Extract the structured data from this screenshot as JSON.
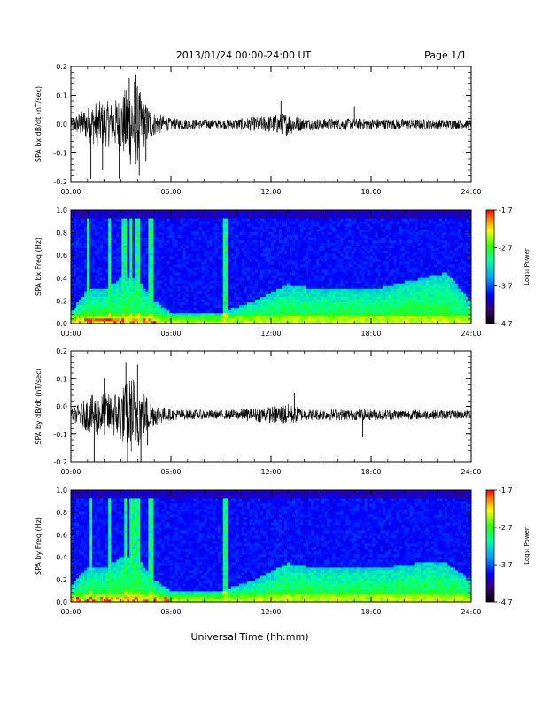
{
  "header": {
    "title": "2013/01/24  00:00-24:00 UT",
    "page": "Page 1/1"
  },
  "xlabel": "Universal Time (hh:mm)",
  "chart_data": [
    {
      "type": "line",
      "ylabel": "SPA bx dB/dt (nT/sec)",
      "x_ticks": [
        "00:00",
        "06:00",
        "12:00",
        "18:00",
        "24:00"
      ],
      "xlim": [
        0,
        24
      ],
      "ylim": [
        -0.2,
        0.2
      ],
      "y_ticks": [
        "0.2",
        "0.1",
        "0.0",
        "-0.1",
        "-0.2"
      ],
      "baseline": 0.0,
      "envelope": [
        {
          "t": 0.0,
          "a": 0.02
        },
        {
          "t": 1.0,
          "a": 0.06
        },
        {
          "t": 1.5,
          "a": 0.08
        },
        {
          "t": 2.5,
          "a": 0.08
        },
        {
          "t": 3.0,
          "a": 0.1
        },
        {
          "t": 3.8,
          "a": 0.17
        },
        {
          "t": 4.3,
          "a": 0.09
        },
        {
          "t": 5.0,
          "a": 0.04
        },
        {
          "t": 6.0,
          "a": 0.02
        },
        {
          "t": 9.0,
          "a": 0.015
        },
        {
          "t": 10.0,
          "a": 0.02
        },
        {
          "t": 12.0,
          "a": 0.03
        },
        {
          "t": 13.0,
          "a": 0.04
        },
        {
          "t": 14.0,
          "a": 0.02
        },
        {
          "t": 18.0,
          "a": 0.02
        },
        {
          "t": 24.0,
          "a": 0.015
        }
      ],
      "spikes": [
        {
          "t": 1.2,
          "v": -0.19
        },
        {
          "t": 1.9,
          "v": -0.16
        },
        {
          "t": 2.9,
          "v": -0.19
        },
        {
          "t": 3.5,
          "v": 0.16
        },
        {
          "t": 3.9,
          "v": 0.17
        },
        {
          "t": 4.1,
          "v": -0.18
        },
        {
          "t": 4.5,
          "v": -0.13
        },
        {
          "t": 12.6,
          "v": 0.08
        },
        {
          "t": 17.0,
          "v": 0.06
        }
      ]
    },
    {
      "type": "heatmap",
      "ylabel": "SPA bx Freq (Hz)",
      "x_ticks": [
        "00:00",
        "06:00",
        "12:00",
        "18:00",
        "24:00"
      ],
      "xlim": [
        0,
        24
      ],
      "ylim": [
        0.0,
        1.0
      ],
      "y_ticks": [
        "1.0",
        "0.8",
        "0.6",
        "0.4",
        "0.2",
        "0.0"
      ],
      "colorbar": {
        "label": "Log₁₀ Power",
        "ticks": [
          "-1.7",
          "-2.7",
          "-3.7",
          "-4.7"
        ],
        "range": [
          -4.7,
          -1.7
        ]
      },
      "activity": [
        {
          "t": 0.0,
          "fmax": 0.1
        },
        {
          "t": 1.0,
          "fmax": 0.3
        },
        {
          "t": 2.0,
          "fmax": 0.3
        },
        {
          "t": 3.0,
          "fmax": 0.4
        },
        {
          "t": 4.0,
          "fmax": 0.4
        },
        {
          "t": 5.0,
          "fmax": 0.2
        },
        {
          "t": 6.0,
          "fmax": 0.1
        },
        {
          "t": 9.0,
          "fmax": 0.1
        },
        {
          "t": 11.0,
          "fmax": 0.2
        },
        {
          "t": 13.0,
          "fmax": 0.35
        },
        {
          "t": 15.0,
          "fmax": 0.3
        },
        {
          "t": 18.0,
          "fmax": 0.3
        },
        {
          "t": 21.0,
          "fmax": 0.4
        },
        {
          "t": 22.5,
          "fmax": 0.45
        },
        {
          "t": 24.0,
          "fmax": 0.2
        }
      ],
      "bursts": [
        1.0,
        2.3,
        3.2,
        3.6,
        4.0,
        4.8,
        9.3
      ]
    },
    {
      "type": "line",
      "ylabel": "SPA by dB/dt (nT/sec)",
      "x_ticks": [
        "00:00",
        "06:00",
        "12:00",
        "18:00",
        "24:00"
      ],
      "xlim": [
        0,
        24
      ],
      "ylim": [
        -0.2,
        0.2
      ],
      "y_ticks": [
        "0.2",
        "0.1",
        "0.0",
        "-0.1",
        "-0.2"
      ],
      "baseline": -0.03,
      "envelope": [
        {
          "t": 0.0,
          "a": 0.02
        },
        {
          "t": 1.0,
          "a": 0.06
        },
        {
          "t": 1.5,
          "a": 0.08
        },
        {
          "t": 2.5,
          "a": 0.08
        },
        {
          "t": 3.0,
          "a": 0.1
        },
        {
          "t": 3.8,
          "a": 0.15
        },
        {
          "t": 4.3,
          "a": 0.09
        },
        {
          "t": 5.0,
          "a": 0.04
        },
        {
          "t": 6.0,
          "a": 0.02
        },
        {
          "t": 9.0,
          "a": 0.015
        },
        {
          "t": 10.0,
          "a": 0.02
        },
        {
          "t": 12.0,
          "a": 0.03
        },
        {
          "t": 13.0,
          "a": 0.04
        },
        {
          "t": 14.0,
          "a": 0.02
        },
        {
          "t": 18.0,
          "a": 0.02
        },
        {
          "t": 24.0,
          "a": 0.015
        }
      ],
      "spikes": [
        {
          "t": 1.4,
          "v": -0.2
        },
        {
          "t": 2.0,
          "v": 0.1
        },
        {
          "t": 3.3,
          "v": 0.16
        },
        {
          "t": 3.4,
          "v": -0.2
        },
        {
          "t": 4.0,
          "v": 0.15
        },
        {
          "t": 4.2,
          "v": -0.2
        },
        {
          "t": 4.6,
          "v": -0.14
        },
        {
          "t": 13.4,
          "v": 0.05
        },
        {
          "t": 17.5,
          "v": -0.11
        }
      ]
    },
    {
      "type": "heatmap",
      "ylabel": "SPA by Freq (Hz)",
      "x_ticks": [
        "00:00",
        "06:00",
        "12:00",
        "18:00",
        "24:00"
      ],
      "xlim": [
        0,
        24
      ],
      "ylim": [
        0.0,
        1.0
      ],
      "y_ticks": [
        "1.0",
        "0.8",
        "0.6",
        "0.4",
        "0.2",
        "0.0"
      ],
      "colorbar": {
        "label": "Log₁₀ Power",
        "ticks": [
          "-1.7",
          "-2.7",
          "-3.7",
          "-4.7"
        ],
        "range": [
          -4.7,
          -1.7
        ]
      },
      "activity": [
        {
          "t": 0.0,
          "fmax": 0.15
        },
        {
          "t": 1.0,
          "fmax": 0.3
        },
        {
          "t": 2.0,
          "fmax": 0.3
        },
        {
          "t": 3.0,
          "fmax": 0.4
        },
        {
          "t": 4.0,
          "fmax": 0.4
        },
        {
          "t": 5.0,
          "fmax": 0.2
        },
        {
          "t": 6.0,
          "fmax": 0.1
        },
        {
          "t": 9.0,
          "fmax": 0.1
        },
        {
          "t": 11.0,
          "fmax": 0.2
        },
        {
          "t": 13.0,
          "fmax": 0.35
        },
        {
          "t": 15.0,
          "fmax": 0.3
        },
        {
          "t": 18.0,
          "fmax": 0.3
        },
        {
          "t": 21.0,
          "fmax": 0.35
        },
        {
          "t": 22.5,
          "fmax": 0.35
        },
        {
          "t": 24.0,
          "fmax": 0.2
        }
      ],
      "bursts": [
        1.2,
        2.3,
        3.3,
        3.7,
        4.0,
        4.8,
        9.3
      ]
    }
  ]
}
